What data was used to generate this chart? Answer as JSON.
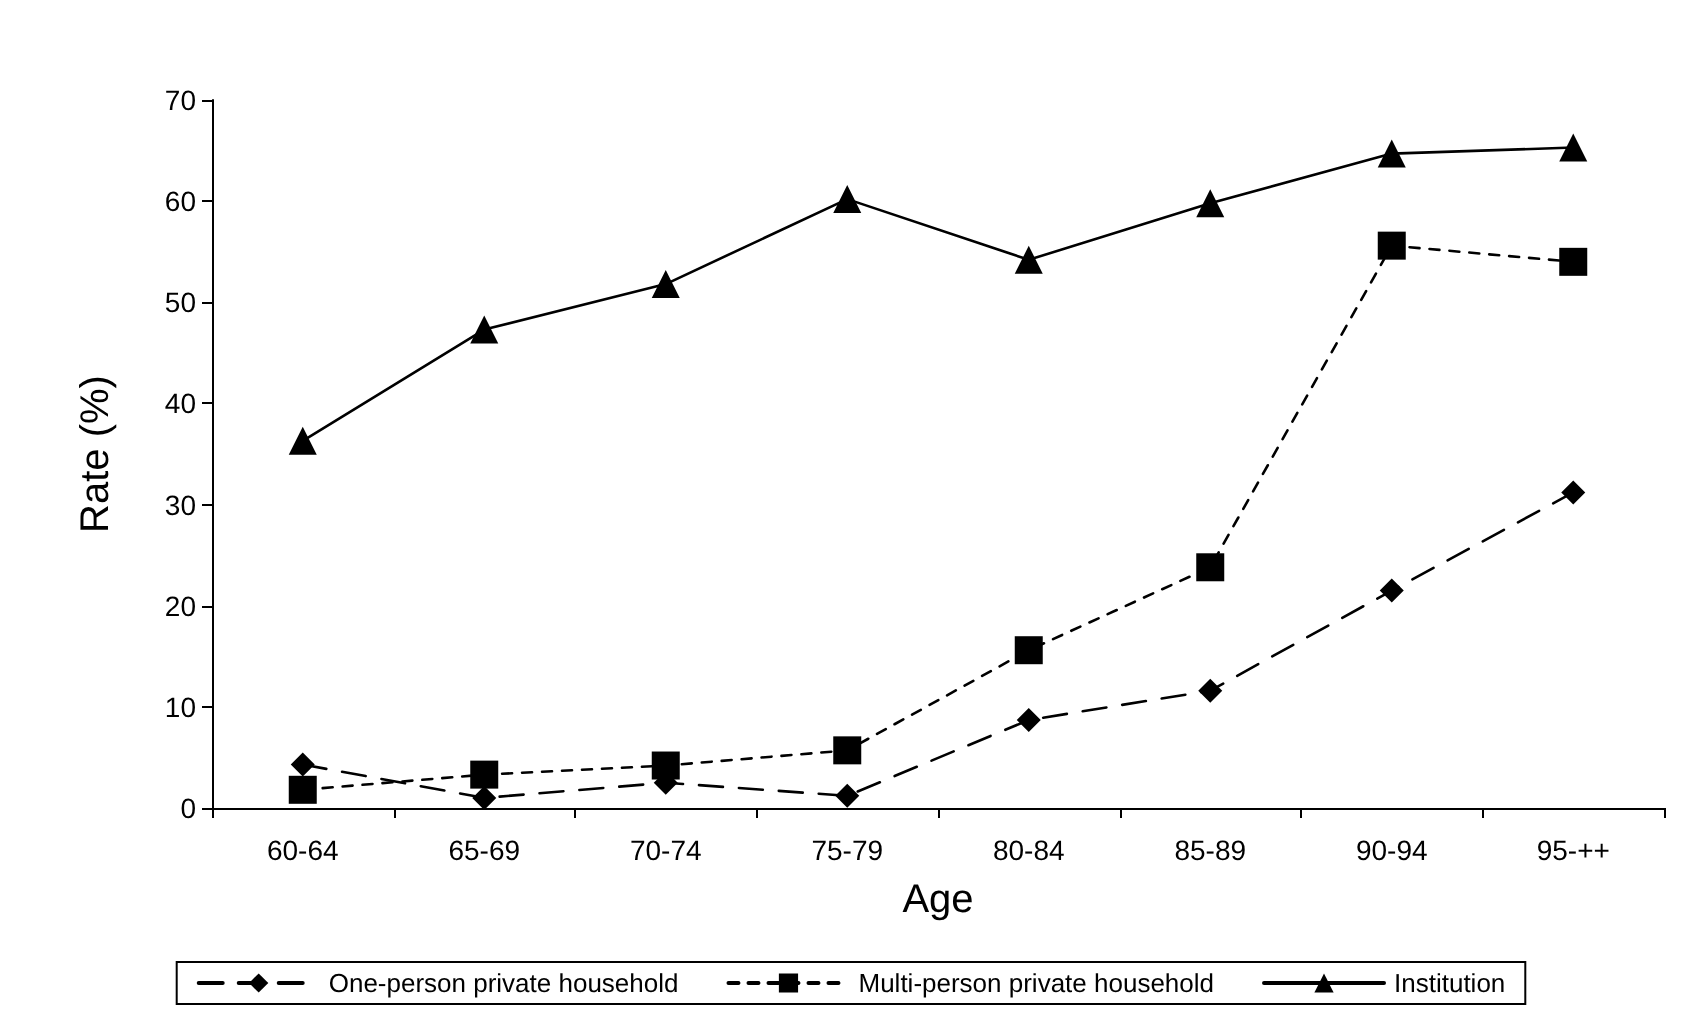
{
  "chart_data": {
    "type": "line",
    "xlabel": "Age",
    "ylabel": "Rate (%)",
    "categories": [
      "60-64",
      "65-69",
      "70-74",
      "75-79",
      "80-84",
      "85-89",
      "90-94",
      "95-++"
    ],
    "ylim": [
      0,
      70
    ],
    "yticks": [
      0,
      10,
      20,
      30,
      40,
      50,
      60,
      70
    ],
    "grid": false,
    "legend": "bottom",
    "series": [
      {
        "name": "One-person private household",
        "color": "#000000",
        "marker": "diamond",
        "line_style": "dashed",
        "values": [
          4.3,
          1.0,
          2.5,
          1.2,
          8.7,
          11.6,
          21.5,
          31.2
        ]
      },
      {
        "name": "Multi-person private household",
        "color": "#000000",
        "marker": "square",
        "line_style": "dotted",
        "values": [
          1.8,
          3.3,
          4.2,
          5.7,
          15.6,
          23.8,
          55.6,
          54.0
        ]
      },
      {
        "name": "Institution",
        "color": "#000000",
        "marker": "triangle",
        "line_style": "solid",
        "values": [
          36.3,
          47.3,
          51.8,
          60.2,
          54.2,
          59.8,
          64.7,
          65.3
        ]
      }
    ]
  }
}
